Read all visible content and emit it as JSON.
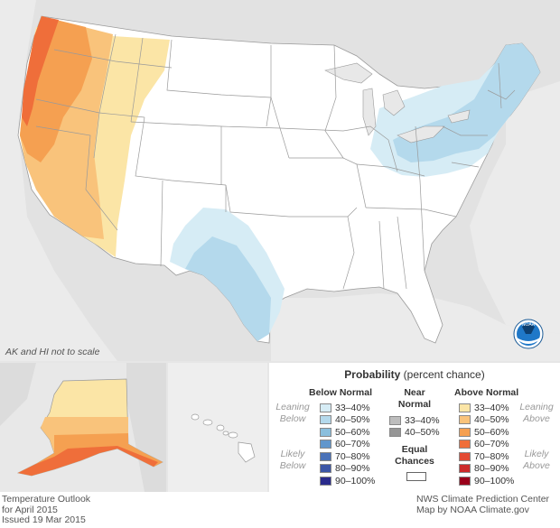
{
  "map": {
    "scale_note": "AK and HI not to scale",
    "logo_text": "NOAA"
  },
  "legend": {
    "title": "Probability",
    "title_suffix": "(percent chance)",
    "below_normal": {
      "heading": "Below Normal",
      "leaning_label_1": "Leaning",
      "leaning_label_2": "Below",
      "likely_label_1": "Likely",
      "likely_label_2": "Below",
      "items": [
        {
          "range": "33–40%",
          "color": "#d6ecf5"
        },
        {
          "range": "40–50%",
          "color": "#b4d9ec"
        },
        {
          "range": "50–60%",
          "color": "#8bbfdd"
        },
        {
          "range": "60–70%",
          "color": "#6196cc"
        },
        {
          "range": "70–80%",
          "color": "#4a72b8"
        },
        {
          "range": "80–90%",
          "color": "#3b56a6"
        },
        {
          "range": "90–100%",
          "color": "#2a2b8c"
        }
      ]
    },
    "near_normal": {
      "heading_1": "Near",
      "heading_2": "Normal",
      "items": [
        {
          "range": "33–40%",
          "color": "#bdbdbd"
        },
        {
          "range": "40–50%",
          "color": "#969696"
        }
      ]
    },
    "equal_chances": {
      "label_1": "Equal",
      "label_2": "Chances",
      "color": "#ffffff"
    },
    "above_normal": {
      "heading": "Above Normal",
      "leaning_label_1": "Leaning",
      "leaning_label_2": "Above",
      "likely_label_1": "Likely",
      "likely_label_2": "Above",
      "items": [
        {
          "range": "33–40%",
          "color": "#fbe5a6"
        },
        {
          "range": "40–50%",
          "color": "#f9c37b"
        },
        {
          "range": "50–60%",
          "color": "#f5a051"
        },
        {
          "range": "60–70%",
          "color": "#ef6e3a"
        },
        {
          "range": "70–80%",
          "color": "#e34a33"
        },
        {
          "range": "80–90%",
          "color": "#cc2a2a"
        },
        {
          "range": "90–100%",
          "color": "#99001a"
        }
      ]
    }
  },
  "footer": {
    "left_line_1": "Temperature Outlook",
    "left_line_2": "for April 2015",
    "left_line_3": "Issued 19 Mar 2015",
    "right_line_1": "NWS Climate Prediction Center",
    "right_line_2": "Map by NOAA Climate.gov"
  }
}
